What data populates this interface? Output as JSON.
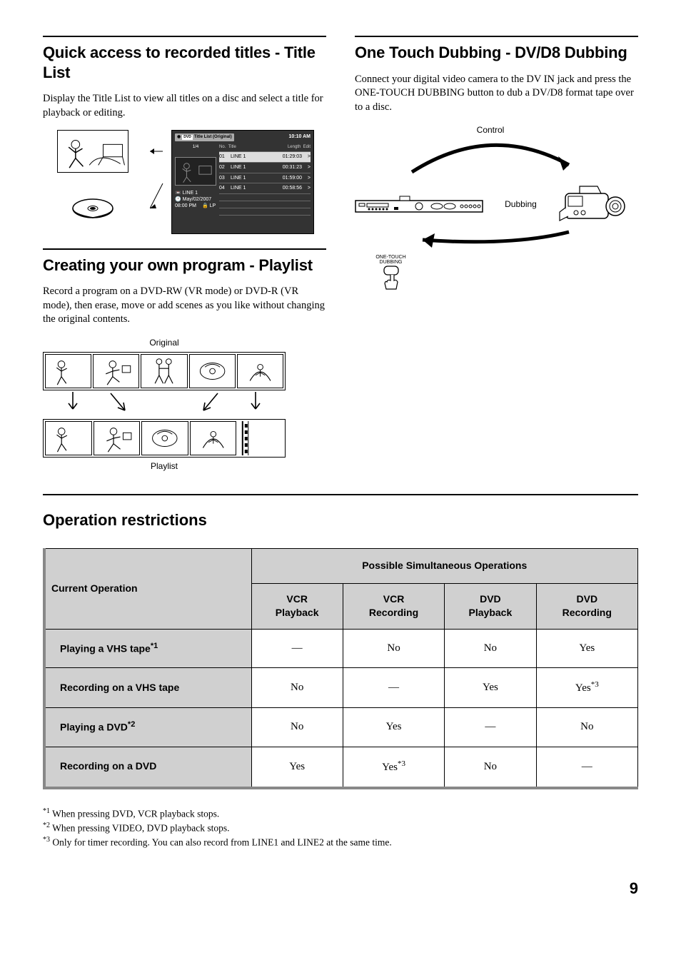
{
  "left": {
    "section1": {
      "title": "Quick access to recorded titles - Title List",
      "body": "Display the Title List to view all titles on a disc and select a title for playback or editing.",
      "titlelist": {
        "badge": "Title List (Original)",
        "time": "10:10 AM",
        "page": "1/4",
        "cols": {
          "no": "No.",
          "title": "Title",
          "length": "Length",
          "edit": "Edit"
        },
        "rows": [
          {
            "no": "01",
            "title": "LINE 1",
            "len": "01:29:03",
            "edit": ">"
          },
          {
            "no": "02",
            "title": "LINE 1",
            "len": "00:31:23",
            "edit": ">"
          },
          {
            "no": "03",
            "title": "LINE 1",
            "len": "01:59:00",
            "edit": ">"
          },
          {
            "no": "04",
            "title": "LINE 1",
            "len": "00:58:56",
            "edit": ">"
          }
        ],
        "meta_title": "LINE 1",
        "meta_date": "May/02/2007",
        "meta_time": "08:00 PM",
        "meta_mode": "LP"
      }
    },
    "section2": {
      "title": "Creating your own program - Playlist",
      "body": "Record a program on a DVD-RW (VR mode) or DVD-R (VR mode), then erase, move or add scenes as you like without changing the original contents.",
      "label_top": "Original",
      "label_bottom": "Playlist"
    }
  },
  "right": {
    "section1": {
      "title": "One Touch Dubbing - DV/D8 Dubbing",
      "body": "Connect your digital video camera to the DV IN jack and press the ONE-TOUCH DUBBING button to dub a DV/D8 format tape over to a disc.",
      "label_control": "Control",
      "label_dubbing": "Dubbing",
      "button_line1": "ONE-TOUCH",
      "button_line2": "DUBBING"
    }
  },
  "restrictions": {
    "title": "Operation restrictions",
    "header_current": "Current Operation",
    "header_possible": "Possible Simultaneous Operations",
    "cols": [
      "VCR Playback",
      "VCR Recording",
      "DVD Playback",
      "DVD Recording"
    ],
    "rows": [
      {
        "label": "Playing a VHS tape",
        "fn": "*1",
        "cells": [
          "—",
          "No",
          "No",
          "Yes"
        ]
      },
      {
        "label": "Recording on a VHS tape",
        "fn": "",
        "cells": [
          "No",
          "—",
          "Yes",
          "Yes*3"
        ]
      },
      {
        "label": "Playing a DVD",
        "fn": "*2",
        "cells": [
          "No",
          "Yes",
          "—",
          "No"
        ]
      },
      {
        "label": "Recording on a DVD",
        "fn": "",
        "cells": [
          "Yes",
          "Yes*3",
          "No",
          "—"
        ]
      }
    ],
    "footnotes": [
      "When pressing DVD, VCR playback stops.",
      "When pressing VIDEO, DVD playback stops.",
      "Only for timer recording. You can also record from LINE1 and LINE2 at the same time."
    ]
  },
  "page": "9"
}
